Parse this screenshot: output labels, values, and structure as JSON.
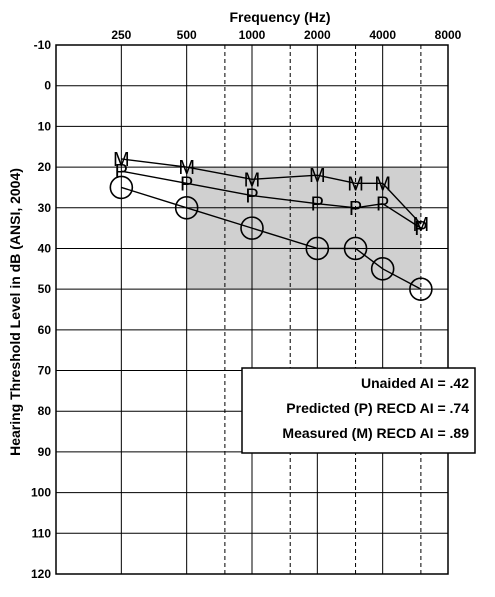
{
  "chart_data": {
    "type": "line",
    "title": "",
    "xlabel": "Frequency (Hz)",
    "ylabel": "Hearing Threshold Level in dB (ANSI, 2004)",
    "x_scale": "log2",
    "xlim": [
      125,
      8000
    ],
    "ylim": [
      -10,
      120
    ],
    "y_inverted": true,
    "x_ticks": [
      {
        "value": 250,
        "label": "250"
      },
      {
        "value": 500,
        "label": "500"
      },
      {
        "value": 1000,
        "label": "1000"
      },
      {
        "value": 2000,
        "label": "2000"
      },
      {
        "value": 4000,
        "label": "4000"
      },
      {
        "value": 8000,
        "label": "8000"
      }
    ],
    "x_dashed_lines": [
      750,
      1500,
      3000,
      6000
    ],
    "y_ticks": [
      -10,
      0,
      10,
      20,
      30,
      40,
      50,
      60,
      70,
      80,
      90,
      100,
      110,
      120
    ],
    "grid": true,
    "shaded_region": {
      "x": [
        500,
        6000
      ],
      "y": [
        20,
        50
      ],
      "color": "#d0d0d0"
    },
    "series": [
      {
        "marker": "M",
        "x": [
          250,
          500,
          1000,
          2000,
          3000,
          4000,
          6000
        ],
        "y": [
          18,
          20,
          23,
          22,
          24,
          24,
          34
        ]
      },
      {
        "marker": "P",
        "x": [
          250,
          500,
          1000,
          2000,
          3000,
          4000,
          6000
        ],
        "y": [
          21,
          24,
          27,
          29,
          30,
          29,
          35
        ]
      },
      {
        "marker": "O",
        "x": [
          250,
          500,
          1000,
          2000,
          3000,
          4000,
          6000
        ],
        "y": [
          25,
          30,
          35,
          40,
          40,
          45,
          50
        ]
      }
    ],
    "annotations": [
      "Unaided AI = .42",
      "Predicted (P) RECD AI = .74",
      "Measured (M) RECD AI = .89"
    ]
  }
}
